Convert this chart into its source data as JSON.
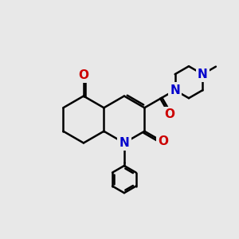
{
  "background_color": "#e8e8e8",
  "bond_color": "#000000",
  "N_color": "#0000cc",
  "O_color": "#cc0000",
  "bond_width": 1.8,
  "font_size": 10,
  "fig_width": 3.0,
  "fig_height": 3.0,
  "dpi": 100,
  "xlim": [
    0,
    10
  ],
  "ylim": [
    0,
    10
  ]
}
